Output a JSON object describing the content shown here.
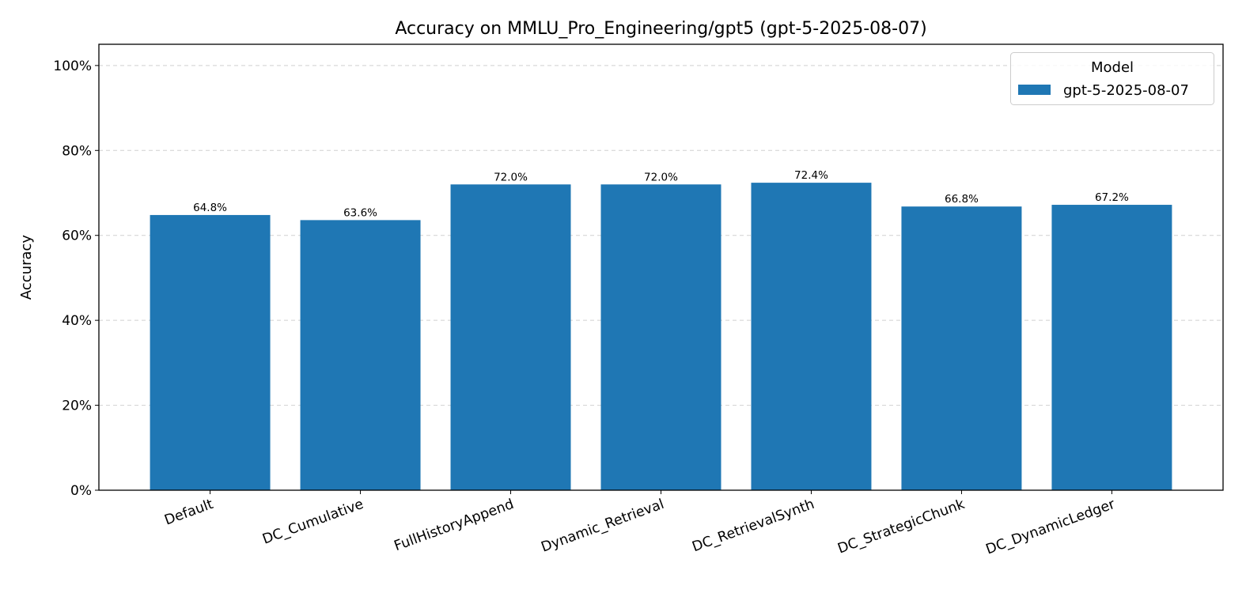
{
  "chart_data": {
    "type": "bar",
    "title": "Accuracy on MMLU_Pro_Engineering/gpt5 (gpt-5-2025-08-07)",
    "xlabel": "",
    "ylabel": "Accuracy",
    "ylim": [
      0,
      105
    ],
    "yticks": [
      0,
      20,
      40,
      60,
      80,
      100
    ],
    "ytick_labels": [
      "0%",
      "20%",
      "40%",
      "60%",
      "80%",
      "100%"
    ],
    "grid": "y, dashed",
    "categories": [
      "Default",
      "DC_Cumulative",
      "FullHistoryAppend",
      "Dynamic_Retrieval",
      "DC_RetrievalSynth",
      "DC_StrategicChunk",
      "DC_DynamicLedger"
    ],
    "series": [
      {
        "name": "gpt-5-2025-08-07",
        "color": "#1f77b4",
        "values": [
          64.8,
          63.6,
          72.0,
          72.0,
          72.4,
          66.8,
          67.2
        ]
      }
    ],
    "data_labels": [
      "64.8%",
      "63.6%",
      "72.0%",
      "72.0%",
      "72.4%",
      "66.8%",
      "67.2%"
    ],
    "legend": {
      "title": "Model",
      "placement": "top-right"
    }
  }
}
